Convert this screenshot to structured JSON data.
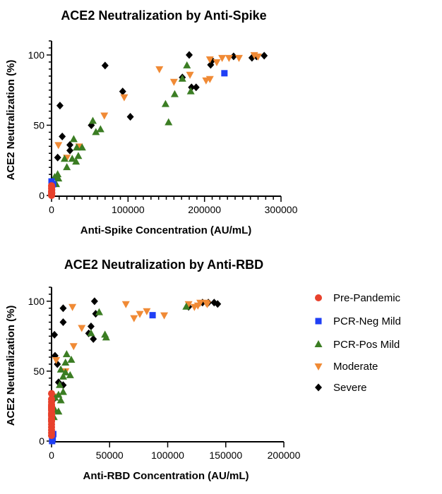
{
  "chart_data": [
    {
      "type": "scatter",
      "title": "ACE2 Neutralization by Anti-Spike",
      "xlabel": "Anti-Spike Concentration (AU/mL)",
      "ylabel": "ACE2 Neutralization (%)",
      "xlim": [
        0,
        300000
      ],
      "ylim": [
        0,
        110
      ],
      "xticks": [
        0,
        100000,
        200000,
        300000
      ],
      "xtick_labels": [
        "0",
        "100000",
        "200000",
        "300000"
      ],
      "yticks": [
        0,
        50,
        100
      ],
      "ytick_labels": [
        "0",
        "50",
        "100"
      ],
      "grid": false,
      "series": [
        {
          "name": "Pre-Pandemic",
          "points": [
            [
              0,
              0
            ],
            [
              0,
              1
            ],
            [
              300,
              2
            ],
            [
              0,
              3
            ],
            [
              300,
              4
            ],
            [
              0,
              5
            ],
            [
              200,
              6
            ],
            [
              0,
              7
            ],
            [
              300,
              1.5
            ],
            [
              0,
              2.5
            ]
          ]
        },
        {
          "name": "PCR-Neg Mild",
          "points": [
            [
              226000,
              87
            ],
            [
              0,
              10
            ],
            [
              2000,
              8
            ],
            [
              500,
              5
            ]
          ]
        },
        {
          "name": "PCR-Pos Mild",
          "points": [
            [
              177000,
              92.5
            ],
            [
              161000,
              72
            ],
            [
              149000,
              65
            ],
            [
              153000,
              52
            ],
            [
              182000,
              74
            ],
            [
              171000,
              83
            ],
            [
              54000,
              53
            ],
            [
              58000,
              45
            ],
            [
              64000,
              47
            ],
            [
              29000,
              40
            ],
            [
              33000,
              34
            ],
            [
              40000,
              34
            ],
            [
              35000,
              28
            ],
            [
              17000,
              26
            ],
            [
              27000,
              26
            ],
            [
              32000,
              24
            ],
            [
              20000,
              20
            ],
            [
              8000,
              15
            ],
            [
              4000,
              13
            ],
            [
              9000,
              12
            ],
            [
              6000,
              8
            ]
          ]
        },
        {
          "name": "Moderate",
          "points": [
            [
              141000,
              90
            ],
            [
              160000,
              81
            ],
            [
              181000,
              86
            ],
            [
              95000,
              70
            ],
            [
              69000,
              57
            ],
            [
              9000,
              36
            ],
            [
              36000,
              35
            ],
            [
              20000,
              27
            ],
            [
              202000,
              82
            ],
            [
              207000,
              83
            ],
            [
              207000,
              97
            ],
            [
              216000,
              95
            ],
            [
              223000,
              98
            ],
            [
              232000,
              98
            ],
            [
              245000,
              98
            ],
            [
              265000,
              100
            ],
            [
              270000,
              99
            ]
          ]
        },
        {
          "name": "Severe",
          "points": [
            [
              180000,
              100
            ],
            [
              70000,
              92.5
            ],
            [
              11000,
              64
            ],
            [
              93000,
              74
            ],
            [
              103000,
              56
            ],
            [
              52000,
              50
            ],
            [
              14000,
              42
            ],
            [
              24000,
              36
            ],
            [
              24000,
              32
            ],
            [
              8000,
              27
            ],
            [
              171000,
              84
            ],
            [
              183000,
              77
            ],
            [
              189000,
              77
            ],
            [
              208000,
              93
            ],
            [
              210000,
              96
            ],
            [
              238000,
              99
            ],
            [
              262000,
              98
            ],
            [
              268000,
              99
            ],
            [
              278000,
              99.5
            ]
          ]
        }
      ]
    },
    {
      "type": "scatter",
      "title": "ACE2 Neutralization by Anti-RBD",
      "xlabel": "Anti-RBD Concentration (AU/mL)",
      "ylabel": "ACE2 Neutralization (%)",
      "xlim": [
        0,
        200000
      ],
      "ylim": [
        0,
        110
      ],
      "xticks": [
        0,
        50000,
        100000,
        150000,
        200000
      ],
      "xtick_labels": [
        "0",
        "50000",
        "100000",
        "150000",
        "200000"
      ],
      "yticks": [
        0,
        50,
        100
      ],
      "ytick_labels": [
        "0",
        "50",
        "100"
      ],
      "grid": false,
      "series": [
        {
          "name": "Pre-Pandemic",
          "points": [
            [
              0,
              34
            ],
            [
              0,
              30
            ],
            [
              0,
              28
            ],
            [
              0,
              26
            ],
            [
              0,
              24
            ],
            [
              0,
              22
            ],
            [
              0,
              20
            ],
            [
              0,
              18
            ],
            [
              0,
              16
            ],
            [
              0,
              14
            ],
            [
              0,
              12
            ],
            [
              0,
              10
            ],
            [
              0,
              8
            ],
            [
              0,
              6
            ],
            [
              0,
              4
            ],
            [
              0,
              25
            ],
            [
              0,
              23
            ],
            [
              0,
              19
            ],
            [
              0,
              15
            ]
          ]
        },
        {
          "name": "PCR-Neg Mild",
          "points": [
            [
              87000,
              90
            ],
            [
              1000,
              2
            ],
            [
              500,
              0
            ],
            [
              1500,
              5
            ]
          ]
        },
        {
          "name": "PCR-Pos Mild",
          "points": [
            [
              41000,
              92
            ],
            [
              34000,
              77
            ],
            [
              46000,
              76
            ],
            [
              47000,
              74
            ],
            [
              13000,
              62
            ],
            [
              17000,
              58
            ],
            [
              12000,
              56
            ],
            [
              8000,
              51
            ],
            [
              12000,
              49
            ],
            [
              10000,
              46
            ],
            [
              16000,
              47
            ],
            [
              7000,
              40
            ],
            [
              10000,
              35
            ],
            [
              6000,
              33
            ],
            [
              8000,
              29
            ],
            [
              3000,
              31
            ],
            [
              6000,
              21
            ],
            [
              3000,
              22
            ],
            [
              2000,
              17
            ],
            [
              116000,
              96
            ]
          ]
        },
        {
          "name": "Moderate",
          "points": [
            [
              18000,
              96
            ],
            [
              64000,
              98
            ],
            [
              26000,
              81
            ],
            [
              19000,
              68
            ],
            [
              4000,
              58
            ],
            [
              12000,
              50
            ],
            [
              4000,
              32
            ],
            [
              71000,
              88
            ],
            [
              76000,
              91
            ],
            [
              82000,
              93
            ],
            [
              97000,
              90
            ],
            [
              118000,
              98
            ],
            [
              123000,
              96
            ],
            [
              126000,
              97
            ],
            [
              128000,
              99
            ],
            [
              133000,
              99
            ],
            [
              134000,
              98
            ]
          ]
        },
        {
          "name": "Severe",
          "points": [
            [
              37000,
              100
            ],
            [
              10000,
              95
            ],
            [
              10000,
              85
            ],
            [
              34000,
              82
            ],
            [
              38000,
              91
            ],
            [
              32000,
              77
            ],
            [
              36000,
              73
            ],
            [
              2500,
              76
            ],
            [
              3000,
              61
            ],
            [
              5000,
              55
            ],
            [
              6000,
              42
            ],
            [
              10000,
              40
            ],
            [
              2000,
              30
            ],
            [
              118000,
              96
            ],
            [
              130000,
              99
            ],
            [
              135000,
              99
            ],
            [
              140000,
              99
            ],
            [
              143000,
              98
            ]
          ]
        }
      ]
    }
  ],
  "legend": {
    "placement": "right",
    "items": [
      {
        "label": "Pre-Pandemic",
        "marker": "circle",
        "color": "#e8412c"
      },
      {
        "label": "PCR-Neg Mild",
        "marker": "square",
        "color": "#1f3ff5"
      },
      {
        "label": "PCR-Pos Mild",
        "marker": "triangle-up",
        "color": "#3b7d23"
      },
      {
        "label": "Moderate",
        "marker": "triangle-down",
        "color": "#f08a35"
      },
      {
        "label": "Severe",
        "marker": "diamond",
        "color": "#000000"
      }
    ]
  }
}
